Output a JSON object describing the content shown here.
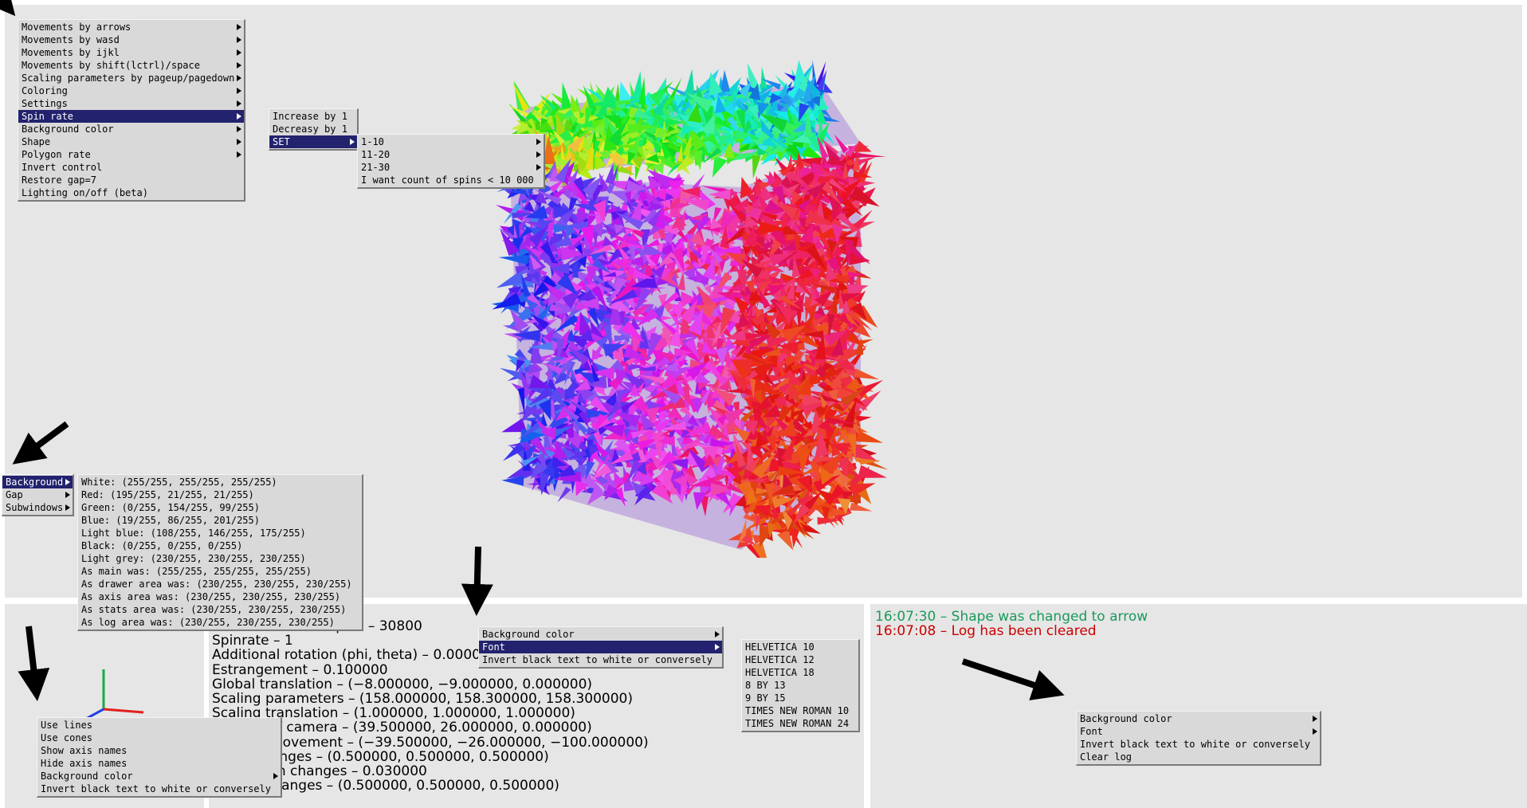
{
  "colors": {
    "area_bg": "#e6e6e6",
    "menu_bg": "#d9d9d9",
    "menu_highlight": "#22226e",
    "log_green": "#1a9a5a",
    "log_red": "#cc0000"
  },
  "main_menu": {
    "items": [
      {
        "label": "Movements by arrows",
        "submenu": true
      },
      {
        "label": "Movements by wasd",
        "submenu": true
      },
      {
        "label": "Movements by ijkl",
        "submenu": true
      },
      {
        "label": "Movements by shift(lctrl)/space",
        "submenu": true
      },
      {
        "label": "Scaling parameters by pageup/pagedown",
        "submenu": true
      },
      {
        "label": "Coloring",
        "submenu": true
      },
      {
        "label": "Settings",
        "submenu": true
      },
      {
        "label": "Spin rate",
        "submenu": true,
        "active": true
      },
      {
        "label": "Background color",
        "submenu": true
      },
      {
        "label": "Shape",
        "submenu": true
      },
      {
        "label": "Polygon rate",
        "submenu": true
      },
      {
        "label": "Invert control",
        "submenu": false
      },
      {
        "label": "Restore gap=7",
        "submenu": false
      },
      {
        "label": "Lighting on/off (beta)",
        "submenu": false
      }
    ]
  },
  "spin_rate_menu": {
    "items": [
      {
        "label": "Increase by 1",
        "submenu": false
      },
      {
        "label": "Decreasy by 1",
        "submenu": false
      },
      {
        "label": "SET",
        "submenu": true,
        "active": true
      }
    ]
  },
  "set_menu": {
    "items": [
      {
        "label": "1-10",
        "submenu": true
      },
      {
        "label": "11-20",
        "submenu": true
      },
      {
        "label": "21-30",
        "submenu": true
      },
      {
        "label": "I want count of spins < 10 000",
        "submenu": false
      }
    ]
  },
  "drawer_menu": {
    "items": [
      {
        "label": "Background",
        "submenu": true,
        "active": true
      },
      {
        "label": "Gap",
        "submenu": true
      },
      {
        "label": "Subwindows",
        "submenu": true
      }
    ]
  },
  "background_menu": {
    "items": [
      {
        "label": "White: (255/255, 255/255, 255/255)"
      },
      {
        "label": "Red: (195/255, 21/255, 21/255)"
      },
      {
        "label": "Green: (0/255, 154/255, 99/255)"
      },
      {
        "label": "Blue: (19/255, 86/255, 201/255)"
      },
      {
        "label": "Light blue: (108/255, 146/255, 175/255)"
      },
      {
        "label": "Black: (0/255, 0/255, 0/255)"
      },
      {
        "label": "Light grey: (230/255, 230/255, 230/255)"
      },
      {
        "label": "As main was: (255/255, 255/255, 255/255)"
      },
      {
        "label": "As drawer area was: (230/255, 230/255, 230/255)"
      },
      {
        "label": "As axis area was: (230/255, 230/255, 230/255)"
      },
      {
        "label": "As stats area was: (230/255, 230/255, 230/255)"
      },
      {
        "label": "As log area was: (230/255, 230/255, 230/255)"
      }
    ]
  },
  "axis_menu": {
    "items": [
      {
        "label": "Use lines",
        "submenu": false
      },
      {
        "label": "Use cones",
        "submenu": false
      },
      {
        "label": "Show axis names",
        "submenu": false
      },
      {
        "label": "Hide axis names",
        "submenu": false
      },
      {
        "label": "Background color",
        "submenu": true
      },
      {
        "label": "Invert black text to white or conversely",
        "submenu": false
      }
    ]
  },
  "stats_menu": {
    "items": [
      {
        "label": "Background color",
        "submenu": true
      },
      {
        "label": "Font",
        "submenu": true,
        "active": true
      },
      {
        "label": "Invert black text to white or conversely",
        "submenu": false
      }
    ]
  },
  "font_menu": {
    "items": [
      {
        "label": "HELVETICA 10"
      },
      {
        "label": "HELVETICA 12"
      },
      {
        "label": "HELVETICA 18"
      },
      {
        "label": "8 BY 13"
      },
      {
        "label": "9 BY 15"
      },
      {
        "label": "TIMES NEW ROMAN 10"
      },
      {
        "label": "TIMES NEW ROMAN 24"
      }
    ]
  },
  "log_menu": {
    "items": [
      {
        "label": "Background color",
        "submenu": true
      },
      {
        "label": "Font",
        "submenu": true
      },
      {
        "label": "Invert black text to white or conversely",
        "submenu": false
      },
      {
        "label": "Clear log",
        "submenu": false
      }
    ]
  },
  "stats_lines": [
    "Count of drawed spins – 30800",
    "Spinrate – 1",
    "Additional rotation (phi, theta) – 0.000000, 0.000000",
    "Estrangement – 0.100000",
    "Global translation – (−8.000000, −9.000000, 0.000000)",
    "Scaling parameters – (158.000000, 158.300000, 158.300000)",
    "Scaling translation – (1.000000, 1.000000, 1.000000)",
    "Position of camera – (39.500000, 26.000000, 0.000000)",
    "Camera movement – (−39.500000, −26.000000, −100.000000)",
    "Angle changes – (0.500000, 0.500000, 0.500000)",
    "Translation changes – 0.030000",
    "Scaling changes – (0.500000, 0.500000, 0.500000)"
  ],
  "log": [
    {
      "text": "16:07:30 – Shape was changed to arrow",
      "color": "#1a9a5a"
    },
    {
      "text": "16:07:08 – Log has been cleared",
      "color": "#cc0000"
    }
  ]
}
